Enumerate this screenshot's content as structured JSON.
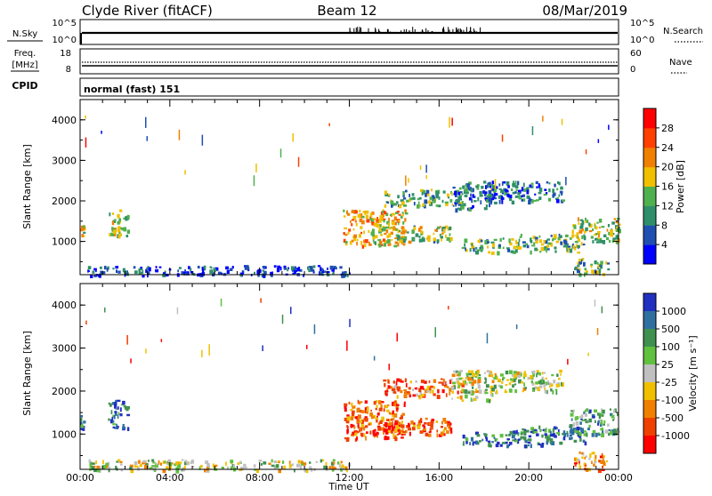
{
  "header": {
    "title": "Clyde River (fitACF)",
    "beam": "Beam 12",
    "date": "08/Mar/2019"
  },
  "colors": {
    "axis": "#000000",
    "background": "#ffffff"
  },
  "top_panels": {
    "nsky": {
      "left_label": "N.Sky",
      "left_tick_top": "10^5",
      "left_tick_bottom": "10^0",
      "right_tick_top": "10^5",
      "right_tick_bottom": "10^0",
      "right_label": "N.Search",
      "baseline_fraction": 0.5
    },
    "freq": {
      "left_label_1": "Freq.",
      "left_label_2": "[MHz]",
      "left_tick_top": "18",
      "left_tick_bottom": "8",
      "right_tick_top": "60",
      "right_tick_bottom": "0",
      "right_label": "Nave"
    },
    "cpid": {
      "label": "CPID",
      "text": "normal (fast) 151"
    }
  },
  "chart_data": [
    {
      "type": "heatmap",
      "name": "power",
      "title": "",
      "xlabel": "",
      "ylabel": "Slant Range [km]",
      "xlim": [
        0,
        24
      ],
      "ylim": [
        180,
        4500
      ],
      "yticks": [
        1000,
        2000,
        3000,
        4000
      ],
      "colorbar": {
        "label": "Power [dB]",
        "ticks": [
          "4",
          "8",
          "12",
          "16",
          "20",
          "24",
          "28"
        ],
        "colors": [
          "#0000ff",
          "#1f4fb0",
          "#2f8f6a",
          "#4fb04f",
          "#f0c000",
          "#f08000",
          "#ff4000",
          "#ff0000"
        ]
      },
      "echo_regions": [
        {
          "t": [
            0.0,
            0.15
          ],
          "r": [
            1150,
            1450
          ],
          "level": 0.55
        },
        {
          "t": [
            1.2,
            2.1
          ],
          "r": [
            1150,
            1800
          ],
          "level": 0.5
        },
        {
          "t": [
            0.3,
            12.0
          ],
          "r": [
            180,
            420
          ],
          "level": 0.15
        },
        {
          "t": [
            11.7,
            14.5
          ],
          "r": [
            900,
            1800
          ],
          "level": 0.6
        },
        {
          "t": [
            13.0,
            16.5
          ],
          "r": [
            1000,
            1400
          ],
          "level": 0.45
        },
        {
          "t": [
            13.5,
            17.0
          ],
          "r": [
            1900,
            2300
          ],
          "level": 0.35
        },
        {
          "t": [
            16.5,
            18.5
          ],
          "r": [
            1800,
            2500
          ],
          "level": 0.3
        },
        {
          "t": [
            17.0,
            19.5
          ],
          "r": [
            750,
            1100
          ],
          "level": 0.4
        },
        {
          "t": [
            18.0,
            21.5
          ],
          "r": [
            2000,
            2500
          ],
          "level": 0.25
        },
        {
          "t": [
            19.5,
            22.5
          ],
          "r": [
            750,
            1200
          ],
          "level": 0.4
        },
        {
          "t": [
            21.8,
            24.0
          ],
          "r": [
            1000,
            1600
          ],
          "level": 0.5
        },
        {
          "t": [
            22.0,
            23.5
          ],
          "r": [
            180,
            600
          ],
          "level": 0.4
        }
      ]
    },
    {
      "type": "heatmap",
      "name": "velocity",
      "title": "",
      "xlabel": "Time UT",
      "ylabel": "Slant Range [km]",
      "xlim": [
        0,
        24
      ],
      "ylim": [
        180,
        4500
      ],
      "xticks": [
        "00:00",
        "04:00",
        "08:00",
        "12:00",
        "16:00",
        "20:00",
        "00:00"
      ],
      "yticks": [
        1000,
        2000,
        3000,
        4000
      ],
      "colorbar": {
        "label": "Velocity [m s⁻¹]",
        "ticks": [
          "1000",
          "500",
          "100",
          "25",
          "-25",
          "-100",
          "-500",
          "-1000"
        ],
        "colors": [
          "#2030c0",
          "#3070a0",
          "#409050",
          "#60c040",
          "#c0c0c0",
          "#f0c000",
          "#f08000",
          "#f04000",
          "#ff0000"
        ]
      },
      "echo_regions": [
        {
          "t": [
            0.0,
            0.15
          ],
          "r": [
            1150,
            1450
          ],
          "level": 0.2
        },
        {
          "t": [
            1.2,
            2.1
          ],
          "r": [
            1150,
            1800
          ],
          "level": 0.15
        },
        {
          "t": [
            0.3,
            12.0
          ],
          "r": [
            180,
            420
          ],
          "level": 0.5
        },
        {
          "t": [
            11.7,
            14.5
          ],
          "r": [
            900,
            1800
          ],
          "level": 0.82
        },
        {
          "t": [
            13.0,
            16.5
          ],
          "r": [
            1000,
            1400
          ],
          "level": 0.8
        },
        {
          "t": [
            13.5,
            17.0
          ],
          "r": [
            1900,
            2300
          ],
          "level": 0.75
        },
        {
          "t": [
            16.5,
            18.5
          ],
          "r": [
            1800,
            2500
          ],
          "level": 0.5
        },
        {
          "t": [
            17.0,
            19.5
          ],
          "r": [
            750,
            1100
          ],
          "level": 0.2
        },
        {
          "t": [
            18.0,
            21.5
          ],
          "r": [
            2000,
            2500
          ],
          "level": 0.45
        },
        {
          "t": [
            19.5,
            22.5
          ],
          "r": [
            750,
            1200
          ],
          "level": 0.2
        },
        {
          "t": [
            21.8,
            24.0
          ],
          "r": [
            1000,
            1600
          ],
          "level": 0.3
        },
        {
          "t": [
            22.0,
            23.5
          ],
          "r": [
            180,
            600
          ],
          "level": 0.7
        }
      ]
    }
  ]
}
